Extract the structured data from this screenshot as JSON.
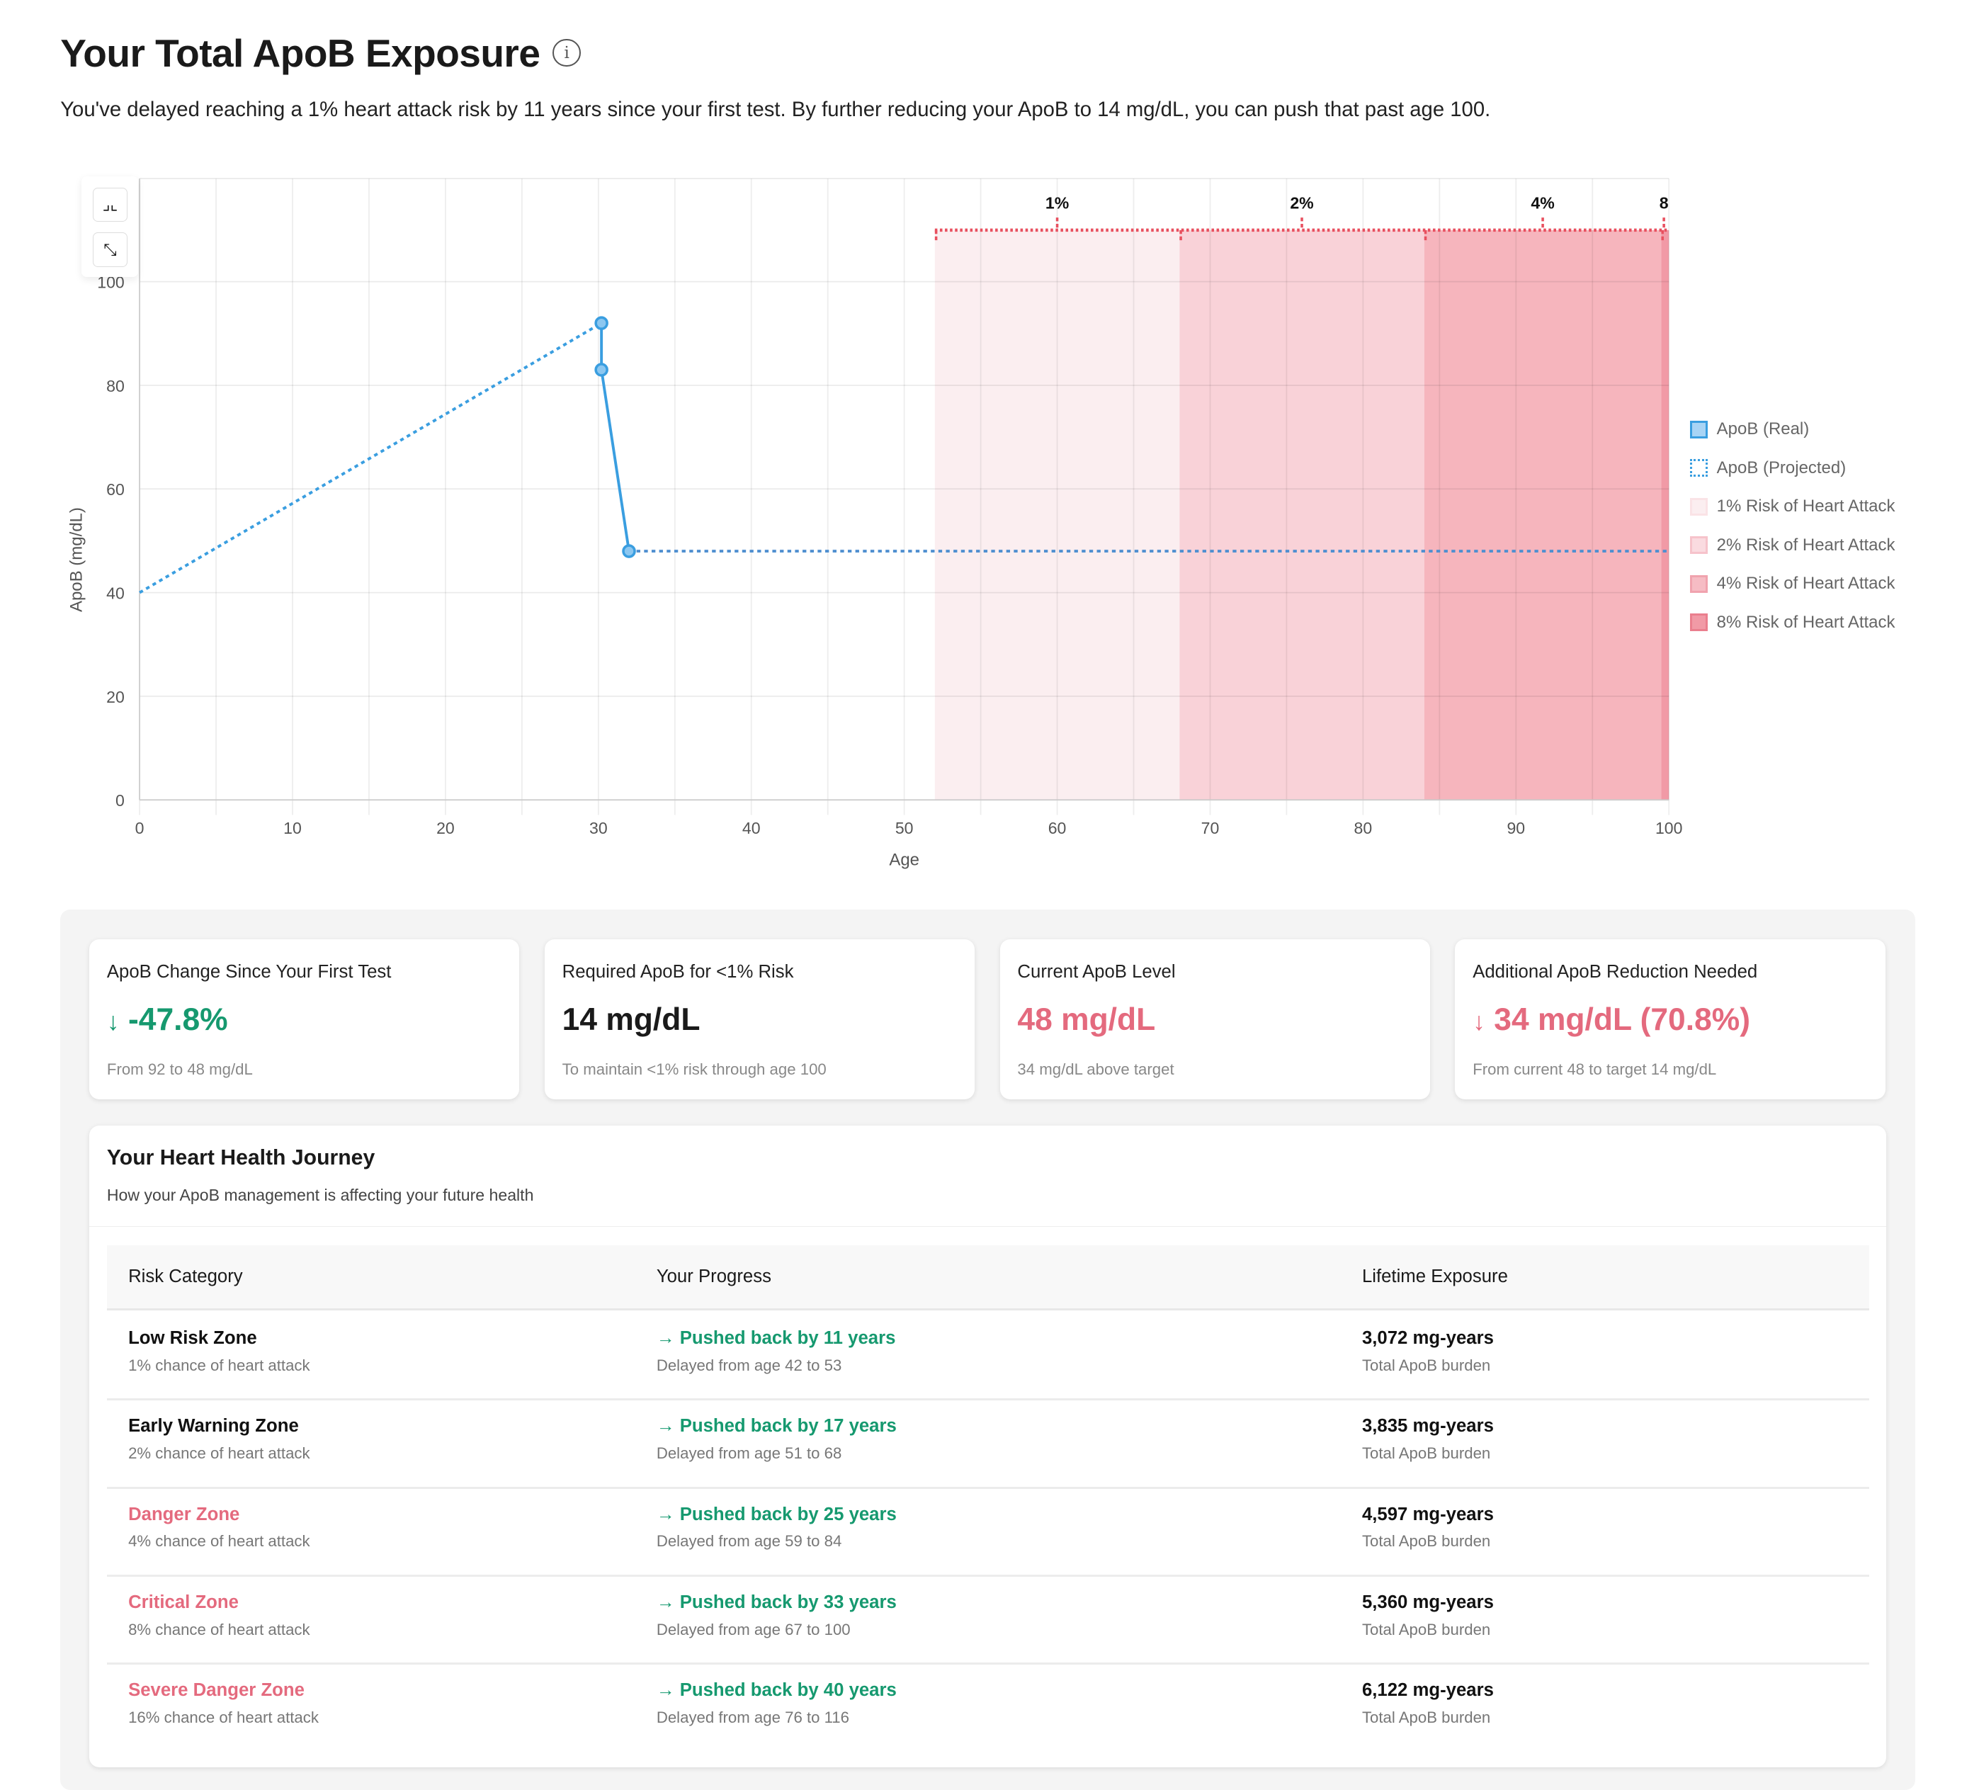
{
  "header": {
    "title": "Your Total ApoB Exposure",
    "info_icon": "info-circle-icon",
    "subtitle": "You've delayed reaching a 1% heart attack risk by 11 years since your first test. By further reducing your ApoB to 14 mg/dL, you can push that past age 100."
  },
  "chart_tools": {
    "zoom_in_icon": "corners-inward-icon",
    "reset_icon": "arrows-inward-icon"
  },
  "chart_data": {
    "type": "line",
    "xlabel": "Age",
    "ylabel": "ApoB (mg/dL)",
    "xlim": [
      0,
      100
    ],
    "ylim": [
      0,
      120
    ],
    "xticks": [
      0,
      10,
      20,
      30,
      40,
      50,
      60,
      70,
      80,
      90,
      100
    ],
    "yticks": [
      0,
      20,
      40,
      60,
      80,
      100
    ],
    "grid": true,
    "series": [
      {
        "name": "ApoB (Real)",
        "style": "solid",
        "color": "#3a9ee0",
        "points": [
          [
            30.2,
            92
          ],
          [
            30.2,
            83
          ],
          [
            32,
            48
          ]
        ]
      },
      {
        "name": "ApoB (Projected)",
        "style": "dotted",
        "color": "#3a9ee0",
        "points": [
          [
            0,
            40
          ],
          [
            30.2,
            92
          ]
        ]
      },
      {
        "name": "ApoB (Projected)",
        "style": "dotted",
        "color": "#3a9ee0",
        "points": [
          [
            32,
            48
          ],
          [
            100,
            48
          ]
        ]
      }
    ],
    "risk_zones": [
      {
        "name": "1% Risk of Heart Attack",
        "label": "1%",
        "from": 52,
        "to": 68,
        "color": "#fbeef0"
      },
      {
        "name": "2% Risk of Heart Attack",
        "label": "2%",
        "from": 68,
        "to": 84,
        "color": "#f9d2d8"
      },
      {
        "name": "4% Risk of Heart Attack",
        "label": "4%",
        "from": 84,
        "to": 99.5,
        "color": "#f6b5bd"
      },
      {
        "name": "8% Risk of Heart Attack",
        "label": "8",
        "from": 99.5,
        "to": 100,
        "color": "#f19aa6"
      }
    ],
    "legend_position": "right",
    "legend": [
      "ApoB (Real)",
      "ApoB (Projected)",
      "1% Risk of Heart Attack",
      "2% Risk of Heart Attack",
      "4% Risk of Heart Attack",
      "8% Risk of Heart Attack"
    ]
  },
  "cards": [
    {
      "title": "ApoB Change Since Your First Test",
      "value": "-47.8%",
      "arrow": "↓",
      "sub": "From 92 to 48 mg/dL"
    },
    {
      "title": "Required ApoB for <1% Risk",
      "value": "14 mg/dL",
      "sub": "To maintain <1% risk through age 100"
    },
    {
      "title": "Current ApoB Level",
      "value": "48 mg/dL",
      "sub": "34 mg/dL above target"
    },
    {
      "title": "Additional ApoB Reduction Needed",
      "value": "34 mg/dL (70.8%)",
      "arrow": "↓",
      "sub": "From current 48 to target 14 mg/dL"
    }
  ],
  "journey": {
    "title": "Your Heart Health Journey",
    "subtitle": "How your ApoB management is affecting your future health",
    "columns": [
      "Risk Category",
      "Your Progress",
      "Lifetime Exposure"
    ],
    "rows": [
      {
        "zone": "Low Risk Zone",
        "chance": "1% chance of heart attack",
        "progress": "Pushed back by 11 years",
        "delay": "Delayed from age 42 to 53",
        "exposure": "3,072 mg-years",
        "exposure_sub": "Total ApoB burden",
        "severity": "normal"
      },
      {
        "zone": "Early Warning Zone",
        "chance": "2% chance of heart attack",
        "progress": "Pushed back by 17 years",
        "delay": "Delayed from age 51 to 68",
        "exposure": "3,835 mg-years",
        "exposure_sub": "Total ApoB burden",
        "severity": "normal"
      },
      {
        "zone": "Danger Zone",
        "chance": "4% chance of heart attack",
        "progress": "Pushed back by 25 years",
        "delay": "Delayed from age 59 to 84",
        "exposure": "4,597 mg-years",
        "exposure_sub": "Total ApoB burden",
        "severity": "danger"
      },
      {
        "zone": "Critical Zone",
        "chance": "8% chance of heart attack",
        "progress": "Pushed back by 33 years",
        "delay": "Delayed from age 67 to 100",
        "exposure": "5,360 mg-years",
        "exposure_sub": "Total ApoB burden",
        "severity": "danger"
      },
      {
        "zone": "Severe Danger Zone",
        "chance": "16% chance of heart attack",
        "progress": "Pushed back by 40 years",
        "delay": "Delayed from age 76 to 116",
        "exposure": "6,122 mg-years",
        "exposure_sub": "Total ApoB burden",
        "severity": "danger"
      }
    ]
  },
  "colors": {
    "green": "#16996f",
    "red": "#e46a7e",
    "line": "#3a9ee0"
  }
}
